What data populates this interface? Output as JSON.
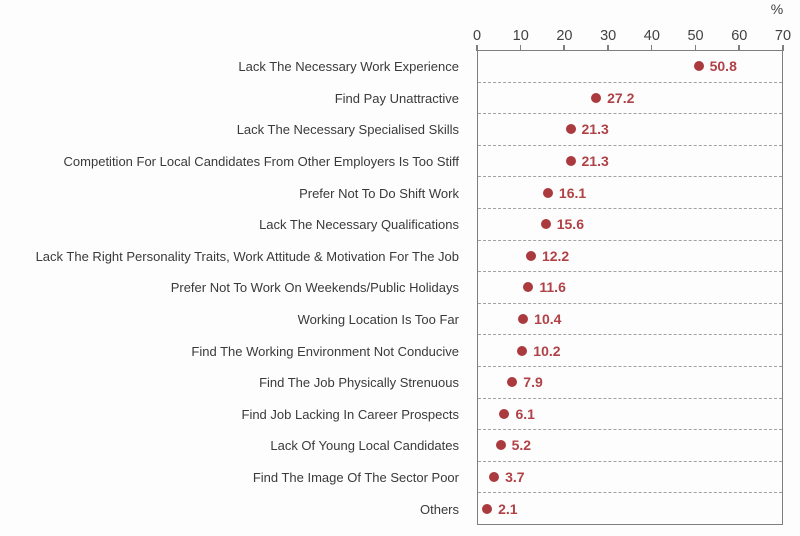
{
  "chart_data": {
    "type": "scatter",
    "subtype": "horizontal-dot-plot",
    "title": "",
    "categories": [
      "Lack The Necessary Work Experience",
      "Find Pay Unattractive",
      "Lack The Necessary Specialised Skills",
      "Competition For Local Candidates From Other Employers Is Too Stiff",
      "Prefer Not To Do Shift Work",
      "Lack The Necessary Qualifications",
      "Lack The Right Personality Traits, Work Attitude & Motivation For The Job",
      "Prefer Not To Work On Weekends/Public Holidays",
      "Working Location Is Too Far",
      "Find The Working Environment Not Conducive",
      "Find The Job Physically Strenuous",
      "Find Job Lacking In Career Prospects",
      "Lack Of Young Local Candidates",
      "Find The Image Of The Sector Poor",
      "Others"
    ],
    "values": [
      50.8,
      27.2,
      21.3,
      21.3,
      16.1,
      15.6,
      12.2,
      11.6,
      10.4,
      10.2,
      7.9,
      6.1,
      5.2,
      3.7,
      2.1
    ],
    "value_labels": [
      "50.8",
      "27.2",
      "21.3",
      "21.3",
      "16.1",
      "15.6",
      "12.2",
      "11.6",
      "10.4",
      "10.2",
      "7.9",
      "6.1",
      "5.2",
      "3.7",
      "2.1"
    ],
    "axis": {
      "position": "top",
      "unit_label": "%",
      "min": 0,
      "max": 70,
      "tick_interval": 10,
      "ticks": [
        "0",
        "10",
        "20",
        "30",
        "40",
        "50",
        "60",
        "70"
      ]
    },
    "layout_hints": {
      "grid": "dashed horizontal separators between rows",
      "legend": "none",
      "value_labels_shown": true
    },
    "colors": {
      "dot": "#aa3a3e",
      "value_text": "#b04247",
      "axis_line": "#7f7f7f",
      "grid_line": "#a2a2a2",
      "category_text": "#3a3a3a",
      "tick_text": "#414141",
      "background": "#fdfdfd"
    }
  }
}
